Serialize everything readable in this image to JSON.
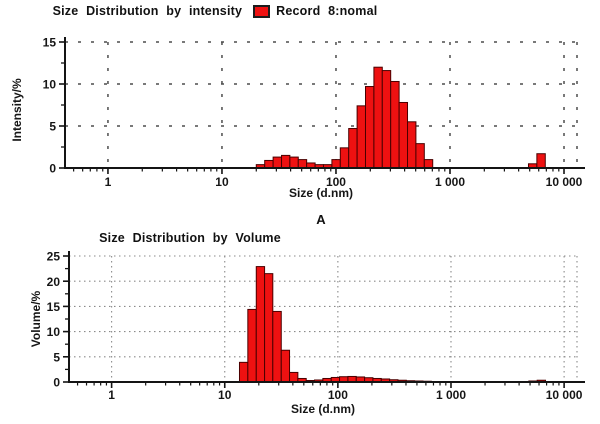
{
  "captions": {
    "panel_a": "A"
  },
  "colors": {
    "bar_fill": "#ee1111",
    "bar_border": "#4a0000",
    "axis": "#141414"
  },
  "chart_data": [
    {
      "id": "intensity-distribution",
      "type": "bar",
      "title": "Size Distribution by intensity",
      "legend": {
        "label": "Record 8:nomal",
        "swatch_color": "#ee1111"
      },
      "xlabel": "Size (d.nm)",
      "ylabel": "Intensity/%",
      "xscale": "log",
      "xlim": [
        0.42,
        13000
      ],
      "ylim": [
        0,
        15
      ],
      "yticks": [
        0,
        5,
        10,
        15
      ],
      "xticks": [
        {
          "value": 1,
          "label": "1"
        },
        {
          "value": 10,
          "label": "10"
        },
        {
          "value": 100,
          "label": "100"
        },
        {
          "value": 1000,
          "label": "1 000"
        },
        {
          "value": 10000,
          "label": "10 000"
        }
      ],
      "grid": "dashed",
      "legend_position": "top",
      "bar_color": "#ee1111",
      "bar_border": "#4a0000",
      "segments": [
        {
          "bin_edges": [
            20,
            23.7,
            28.1,
            33.3,
            39.4,
            46.7,
            55.3,
            65.6,
            77.7,
            92.1,
            109.1,
            129.3,
            153.2,
            181.5,
            215.1,
            254.8,
            301.9,
            357.8,
            424.0,
            502.4,
            595.3,
            705.4
          ],
          "values": [
            0.4,
            0.9,
            1.3,
            1.5,
            1.3,
            1.0,
            0.6,
            0.4,
            0.4,
            1.0,
            2.4,
            4.7,
            7.4,
            9.7,
            12.0,
            11.6,
            10.3,
            7.8,
            5.5,
            2.9,
            1.0
          ]
        },
        {
          "bin_edges": [
            4880,
            5780,
            6850
          ],
          "values": [
            0.5,
            1.7
          ]
        }
      ]
    },
    {
      "id": "volume-distribution",
      "type": "bar",
      "title": "Size Distribution by Volume",
      "xlabel": "Size (d.nm)",
      "ylabel": "Volume/%",
      "xscale": "log",
      "xlim": [
        0.42,
        13000
      ],
      "ylim": [
        0,
        25
      ],
      "yticks": [
        0,
        5,
        10,
        15,
        20,
        25
      ],
      "xticks": [
        {
          "value": 1,
          "label": "1"
        },
        {
          "value": 10,
          "label": "10"
        },
        {
          "value": 100,
          "label": "100"
        },
        {
          "value": 1000,
          "label": "1 000"
        },
        {
          "value": 10000,
          "label": "10 000"
        }
      ],
      "grid": "dotted",
      "bar_color": "#ee1111",
      "bar_border": "#4a0000",
      "segments": [
        {
          "bin_edges": [
            13.5,
            16.0,
            19.0,
            22.5,
            26.6,
            31.6,
            37.4,
            44.3,
            52.5,
            62.2,
            73.7,
            87.4,
            103.5,
            122.7,
            145.4,
            172.3,
            204.2,
            242.0,
            286.7,
            339.8,
            402.7,
            477.2,
            565.5,
            670.2
          ],
          "values": [
            3.9,
            14.4,
            22.9,
            21.5,
            14.0,
            6.3,
            1.9,
            0.7,
            0.3,
            0.4,
            0.7,
            0.9,
            1.05,
            1.1,
            1.0,
            0.85,
            0.7,
            0.6,
            0.45,
            0.35,
            0.25,
            0.2,
            0.15
          ]
        },
        {
          "bin_edges": [
            4880,
            5780,
            6850
          ],
          "values": [
            0.2,
            0.35
          ]
        }
      ]
    }
  ]
}
